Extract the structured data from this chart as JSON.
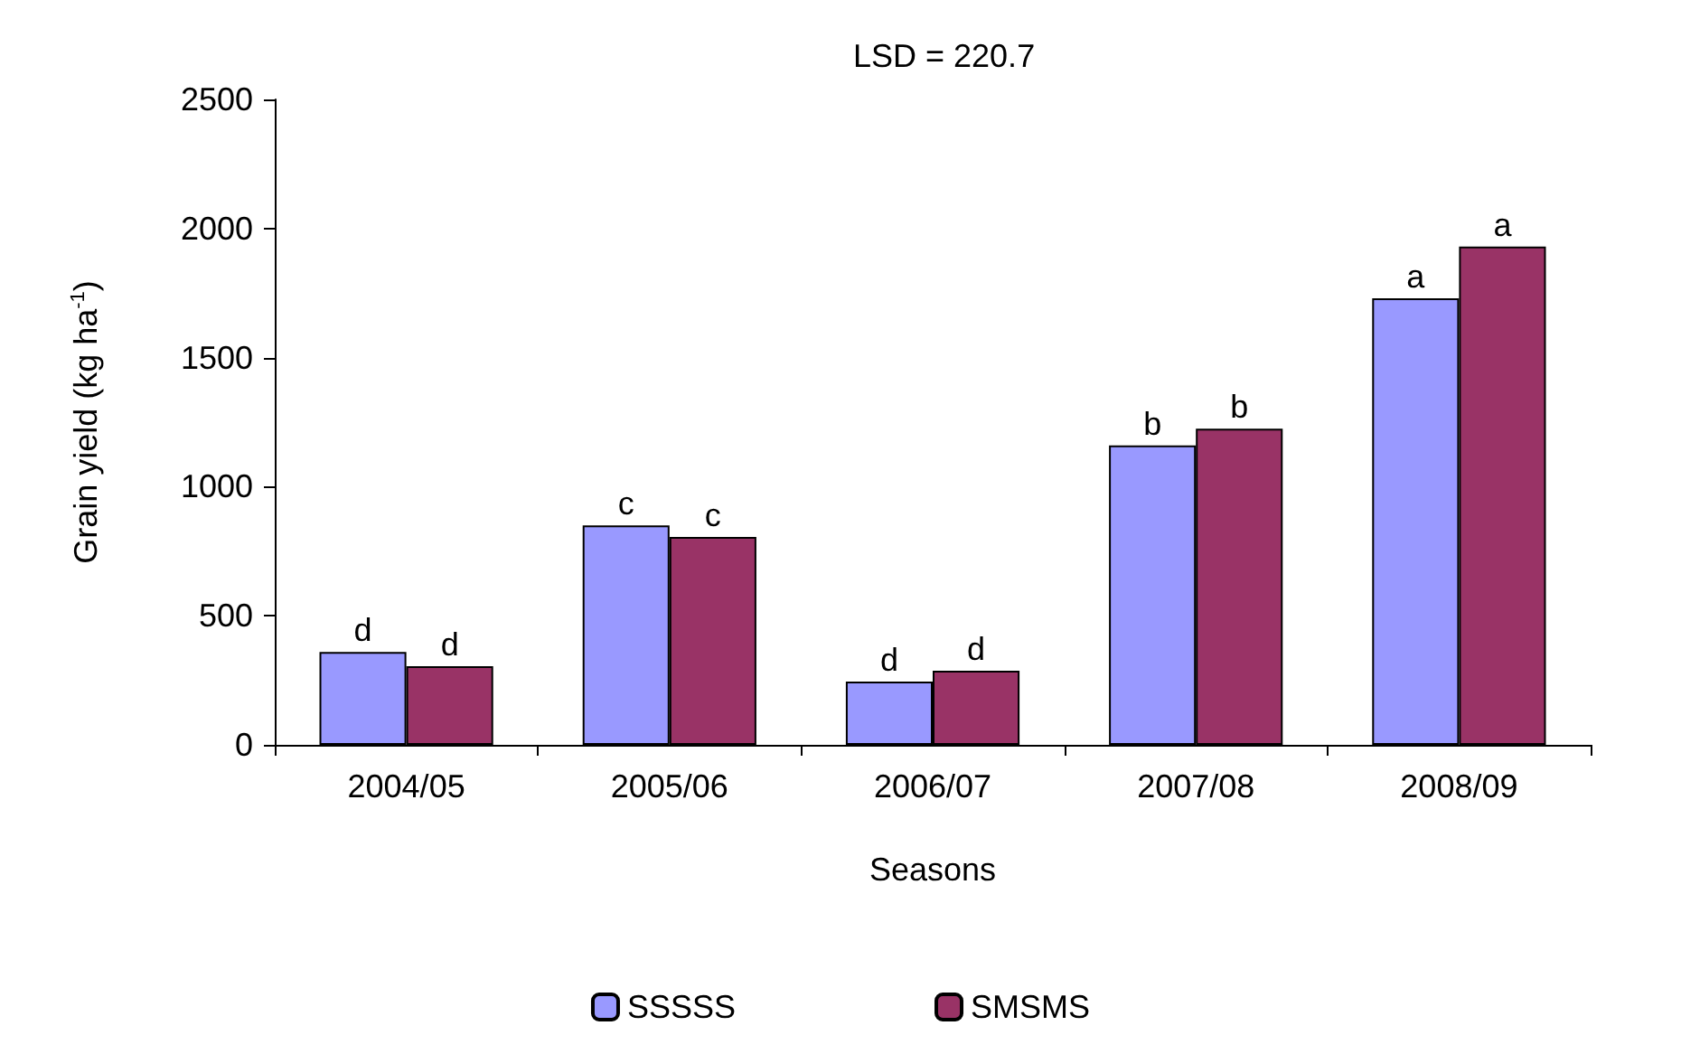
{
  "chart_data": {
    "type": "bar",
    "xlabel": "Seasons",
    "ylabel": "Grain yield (kg ha$^{-1}$)",
    "annotations": [
      "LSD = 220.7"
    ],
    "categories": [
      "2004/05",
      "2005/06",
      "2006/07",
      "2007/08",
      "2008/09"
    ],
    "series": [
      {
        "name": "SSSSS",
        "color": "#9999ff",
        "values": [
          360,
          850,
          245,
          1160,
          1730
        ],
        "value_labels": [
          "d",
          "c",
          "d",
          "b",
          "a"
        ]
      },
      {
        "name": "SMSMS",
        "color": "#993366",
        "values": [
          305,
          805,
          287,
          1225,
          1930
        ],
        "value_labels": [
          "d",
          "c",
          "d",
          "b",
          "a"
        ]
      }
    ],
    "ylim": [
      0,
      2500
    ],
    "yticks": [
      0,
      500,
      1000,
      1500,
      2000,
      2500
    ],
    "grid": false,
    "legend": "bottom"
  }
}
